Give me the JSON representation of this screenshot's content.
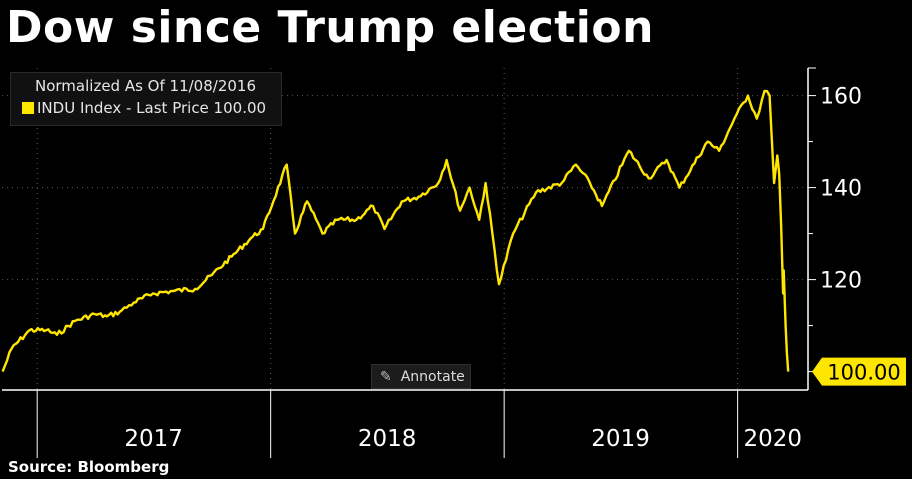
{
  "title": "Dow since Trump election",
  "legend": {
    "note": "Normalized As Of 11/08/2016",
    "entry": "INDU Index - Last Price 100.00"
  },
  "annotate_label": "Annotate",
  "source": "Source: Bloomberg",
  "colors": {
    "line": "#ffe600",
    "background": "#000000",
    "grid": "#5a5a5a"
  },
  "chart_data": {
    "type": "line",
    "series": [
      {
        "name": "INDU Index - Last Price",
        "points": [
          [
            "2016-11-08",
            100
          ],
          [
            "2016-11-22",
            105
          ],
          [
            "2016-12-20",
            109
          ],
          [
            "2017-01-15",
            109
          ],
          [
            "2017-02-01",
            108
          ],
          [
            "2017-03-01",
            111
          ],
          [
            "2017-04-01",
            112.5
          ],
          [
            "2017-04-20",
            112
          ],
          [
            "2017-05-10",
            113
          ],
          [
            "2017-06-01",
            115
          ],
          [
            "2017-07-01",
            117
          ],
          [
            "2017-08-01",
            117.5
          ],
          [
            "2017-09-05",
            118
          ],
          [
            "2017-10-01",
            121
          ],
          [
            "2017-11-01",
            125
          ],
          [
            "2017-12-01",
            129
          ],
          [
            "2017-12-20",
            131
          ],
          [
            "2018-01-26",
            145
          ],
          [
            "2018-02-08",
            130
          ],
          [
            "2018-02-27",
            137
          ],
          [
            "2018-03-23",
            130
          ],
          [
            "2018-04-15",
            133
          ],
          [
            "2018-05-15",
            133
          ],
          [
            "2018-06-10",
            136
          ],
          [
            "2018-06-28",
            131
          ],
          [
            "2018-07-25",
            137
          ],
          [
            "2018-08-20",
            138
          ],
          [
            "2018-09-20",
            141
          ],
          [
            "2018-10-03",
            146
          ],
          [
            "2018-10-24",
            135
          ],
          [
            "2018-11-08",
            140
          ],
          [
            "2018-11-23",
            133
          ],
          [
            "2018-12-03",
            141
          ],
          [
            "2018-12-24",
            119
          ],
          [
            "2019-01-15",
            130
          ],
          [
            "2019-02-20",
            139
          ],
          [
            "2019-04-01",
            141
          ],
          [
            "2019-04-23",
            145
          ],
          [
            "2019-05-15",
            141
          ],
          [
            "2019-06-03",
            136
          ],
          [
            "2019-07-15",
            148
          ],
          [
            "2019-08-15",
            142
          ],
          [
            "2019-09-12",
            146
          ],
          [
            "2019-10-02",
            140
          ],
          [
            "2019-11-15",
            150
          ],
          [
            "2019-12-03",
            148
          ],
          [
            "2019-12-27",
            155
          ],
          [
            "2020-01-17",
            160
          ],
          [
            "2020-01-31",
            155
          ],
          [
            "2020-02-12",
            161
          ],
          [
            "2020-02-20",
            160
          ],
          [
            "2020-02-27",
            141
          ],
          [
            "2020-03-03",
            147
          ],
          [
            "2020-03-06",
            143
          ],
          [
            "2020-03-09",
            132
          ],
          [
            "2020-03-12",
            117
          ],
          [
            "2020-03-13",
            122
          ],
          [
            "2020-03-16",
            110
          ],
          [
            "2020-03-18",
            104
          ],
          [
            "2020-03-20",
            100
          ]
        ],
        "last_value": "100.00"
      }
    ],
    "x_ticks": [
      "2017",
      "2018",
      "2019",
      "2020"
    ],
    "y_ticks": [
      "160",
      "140",
      "120"
    ],
    "xlim": [
      "2016-11-07",
      "2020-04-20"
    ],
    "ylim": [
      96,
      166
    ],
    "xlabel": "",
    "ylabel": "",
    "grid": true,
    "legend_position": "top-left"
  }
}
